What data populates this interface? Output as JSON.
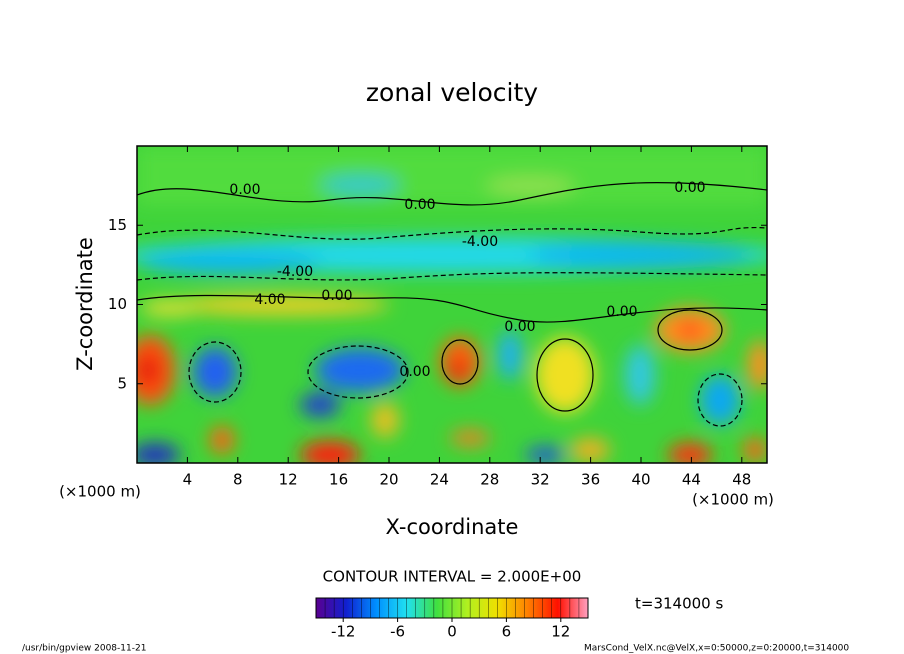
{
  "chart_data": {
    "type": "contour",
    "title": "zonal velocity",
    "xlabel": "X-coordinate",
    "ylabel": "Z-coordinate",
    "x_unit": "(×1000 m)",
    "xlim": [
      0,
      50
    ],
    "xticks": [
      4,
      8,
      12,
      16,
      20,
      24,
      28,
      32,
      36,
      40,
      44,
      48
    ],
    "ylim": [
      0,
      20
    ],
    "yticks": [
      5,
      10,
      15
    ],
    "contour_labels": [
      "0.00",
      "0.00",
      "0.00",
      "-4.00",
      "-4.00",
      "4.00",
      "0.00",
      "0.00",
      "0.00",
      "0.00"
    ],
    "contour_interval": "CONTOUR INTERVAL = 2.000E+00",
    "time": "t=314000 s",
    "colorbar": {
      "clim": [
        -15,
        15
      ],
      "ticks": [
        -12,
        -6,
        0,
        6,
        12
      ]
    },
    "footer_left": "/usr/bin/gpview   2008-11-21",
    "footer_right": "MarsCond_VelX.nc@VelX,x=0:50000,z=0:20000,t=314000"
  }
}
